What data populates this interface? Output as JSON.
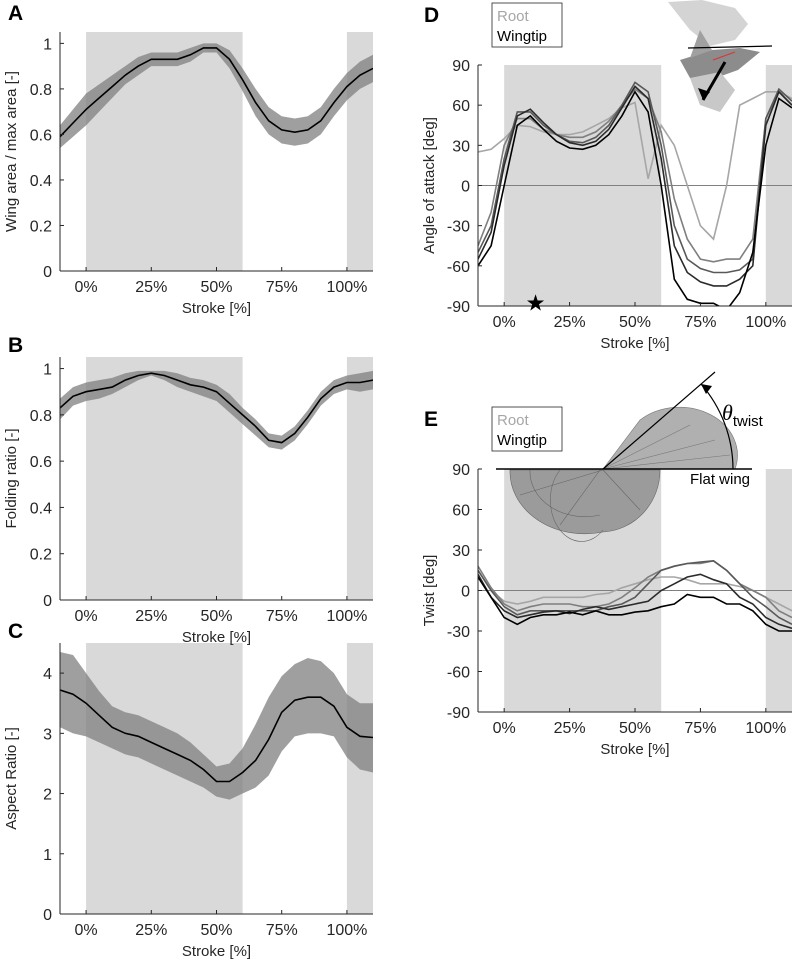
{
  "chart_data": [
    {
      "type": "line",
      "panel": "A",
      "xlabel": "Stroke [%]",
      "ylabel": "Wing area / max area [-]",
      "xlim": [
        -10,
        110
      ],
      "ylim": [
        0,
        1.05
      ],
      "xticks": [
        {
          "value": 0,
          "label": "0%"
        },
        {
          "value": 25,
          "label": "25%"
        },
        {
          "value": 50,
          "label": "50%"
        },
        {
          "value": 75,
          "label": "75%"
        },
        {
          "value": 100,
          "label": "100%"
        }
      ],
      "yticks": [
        0,
        0.2,
        0.4,
        0.6,
        0.8,
        1
      ],
      "shaded_regions": [
        [
          0,
          60
        ],
        [
          100,
          110
        ]
      ],
      "x": [
        -10,
        -5,
        0,
        5,
        10,
        15,
        20,
        25,
        30,
        35,
        40,
        45,
        50,
        55,
        60,
        65,
        70,
        75,
        80,
        85,
        90,
        95,
        100,
        105,
        110
      ],
      "series": [
        {
          "color": "#000000",
          "values": [
            0.59,
            0.65,
            0.71,
            0.76,
            0.81,
            0.86,
            0.9,
            0.93,
            0.93,
            0.93,
            0.95,
            0.98,
            0.98,
            0.93,
            0.84,
            0.74,
            0.66,
            0.62,
            0.61,
            0.62,
            0.66,
            0.74,
            0.81,
            0.86,
            0.89
          ]
        }
      ],
      "band": {
        "color": "#7f7f7f",
        "lower": [
          0.54,
          0.59,
          0.64,
          0.7,
          0.76,
          0.82,
          0.86,
          0.9,
          0.9,
          0.9,
          0.92,
          0.96,
          0.96,
          0.89,
          0.79,
          0.68,
          0.6,
          0.56,
          0.55,
          0.56,
          0.6,
          0.68,
          0.75,
          0.8,
          0.83
        ],
        "upper": [
          0.64,
          0.71,
          0.78,
          0.82,
          0.86,
          0.9,
          0.94,
          0.96,
          0.96,
          0.96,
          0.98,
          1.0,
          1.0,
          0.97,
          0.89,
          0.8,
          0.72,
          0.68,
          0.67,
          0.68,
          0.72,
          0.8,
          0.87,
          0.92,
          0.95
        ]
      }
    },
    {
      "type": "line",
      "panel": "B",
      "xlabel": "Stroke [%]",
      "ylabel": "Folding ratio [-]",
      "xlim": [
        -10,
        110
      ],
      "ylim": [
        0,
        1.05
      ],
      "xticks": [
        {
          "value": 0,
          "label": "0%"
        },
        {
          "value": 25,
          "label": "25%"
        },
        {
          "value": 50,
          "label": "50%"
        },
        {
          "value": 75,
          "label": "75%"
        },
        {
          "value": 100,
          "label": "100%"
        }
      ],
      "yticks": [
        0,
        0.2,
        0.4,
        0.6,
        0.8,
        1
      ],
      "shaded_regions": [
        [
          0,
          60
        ],
        [
          100,
          110
        ]
      ],
      "x": [
        -10,
        -5,
        0,
        5,
        10,
        15,
        20,
        25,
        30,
        35,
        40,
        45,
        50,
        55,
        60,
        65,
        70,
        75,
        80,
        85,
        90,
        95,
        100,
        105,
        110
      ],
      "series": [
        {
          "color": "#000000",
          "values": [
            0.83,
            0.88,
            0.9,
            0.91,
            0.92,
            0.95,
            0.97,
            0.98,
            0.97,
            0.95,
            0.93,
            0.92,
            0.9,
            0.85,
            0.8,
            0.75,
            0.69,
            0.68,
            0.72,
            0.79,
            0.87,
            0.92,
            0.94,
            0.94,
            0.95
          ]
        }
      ],
      "band": {
        "color": "#7f7f7f",
        "lower": [
          0.78,
          0.84,
          0.86,
          0.87,
          0.89,
          0.92,
          0.95,
          0.97,
          0.95,
          0.92,
          0.9,
          0.88,
          0.86,
          0.81,
          0.76,
          0.71,
          0.66,
          0.65,
          0.69,
          0.76,
          0.84,
          0.89,
          0.91,
          0.9,
          0.91
        ],
        "upper": [
          0.87,
          0.92,
          0.94,
          0.95,
          0.96,
          0.98,
          0.99,
          0.99,
          0.99,
          0.98,
          0.96,
          0.95,
          0.93,
          0.89,
          0.83,
          0.78,
          0.72,
          0.71,
          0.75,
          0.82,
          0.9,
          0.95,
          0.97,
          0.98,
          0.99
        ]
      }
    },
    {
      "type": "line",
      "panel": "C",
      "xlabel": "Stroke [%]",
      "ylabel": "Aspect Ratio [-]",
      "xlim": [
        -10,
        110
      ],
      "ylim": [
        0,
        4.5
      ],
      "xticks": [
        {
          "value": 0,
          "label": "0%"
        },
        {
          "value": 25,
          "label": "25%"
        },
        {
          "value": 50,
          "label": "50%"
        },
        {
          "value": 75,
          "label": "75%"
        },
        {
          "value": 100,
          "label": "100%"
        }
      ],
      "yticks": [
        0,
        1,
        2,
        3,
        4
      ],
      "shaded_regions": [
        [
          0,
          60
        ],
        [
          100,
          110
        ]
      ],
      "x": [
        -10,
        -5,
        0,
        5,
        10,
        15,
        20,
        25,
        30,
        35,
        40,
        45,
        50,
        55,
        60,
        65,
        70,
        75,
        80,
        85,
        90,
        95,
        100,
        105,
        110
      ],
      "series": [
        {
          "color": "#000000",
          "values": [
            3.72,
            3.65,
            3.5,
            3.3,
            3.1,
            3.0,
            2.95,
            2.85,
            2.75,
            2.65,
            2.55,
            2.4,
            2.2,
            2.2,
            2.35,
            2.55,
            2.9,
            3.35,
            3.55,
            3.6,
            3.6,
            3.45,
            3.1,
            2.95,
            2.93
          ]
        }
      ],
      "band": {
        "color": "#7f7f7f",
        "lower": [
          3.1,
          3.0,
          2.95,
          2.85,
          2.75,
          2.65,
          2.6,
          2.5,
          2.4,
          2.3,
          2.2,
          2.1,
          1.95,
          1.9,
          2.0,
          2.1,
          2.3,
          2.7,
          2.95,
          3.0,
          3.0,
          2.95,
          2.6,
          2.4,
          2.35
        ],
        "upper": [
          4.35,
          4.3,
          4.0,
          3.7,
          3.45,
          3.35,
          3.3,
          3.2,
          3.1,
          3.0,
          2.85,
          2.65,
          2.45,
          2.5,
          2.75,
          3.15,
          3.6,
          3.95,
          4.15,
          4.25,
          4.2,
          4.0,
          3.65,
          3.5,
          3.5
        ]
      }
    },
    {
      "type": "line",
      "panel": "D",
      "xlabel": "Stroke [%]",
      "ylabel": "Angle of attack [deg]",
      "xlim": [
        -10,
        110
      ],
      "ylim": [
        -90,
        90
      ],
      "xticks": [
        {
          "value": 0,
          "label": "0%"
        },
        {
          "value": 25,
          "label": "25%"
        },
        {
          "value": 50,
          "label": "50%"
        },
        {
          "value": 75,
          "label": "75%"
        },
        {
          "value": 100,
          "label": "100%"
        }
      ],
      "yticks": [
        -90,
        -60,
        -30,
        0,
        30,
        60,
        90
      ],
      "shaded_regions": [
        [
          0,
          60
        ],
        [
          100,
          110
        ]
      ],
      "hline": 0,
      "legend": [
        {
          "name": "Root",
          "color": "#a6a6a6"
        },
        {
          "name": "Wingtip",
          "color": "#000000"
        }
      ],
      "star": {
        "x": 12,
        "y": -88
      },
      "x": [
        -10,
        -5,
        0,
        5,
        10,
        15,
        20,
        25,
        30,
        35,
        40,
        45,
        50,
        55,
        60,
        65,
        70,
        75,
        80,
        85,
        90,
        95,
        100,
        105,
        110
      ],
      "series": [
        {
          "color": "#a6a6a6",
          "values": [
            25,
            27,
            35,
            45,
            44,
            40,
            38,
            38,
            40,
            45,
            50,
            58,
            62,
            5,
            45,
            30,
            0,
            -30,
            -40,
            0,
            60,
            65,
            70,
            70,
            65
          ]
        },
        {
          "color": "#7f7f7f",
          "values": [
            -45,
            -20,
            30,
            50,
            50,
            42,
            38,
            36,
            36,
            40,
            48,
            60,
            72,
            65,
            40,
            -10,
            -40,
            -55,
            -57,
            -55,
            -55,
            -40,
            50,
            70,
            60
          ]
        },
        {
          "color": "#595959",
          "values": [
            -50,
            -30,
            20,
            55,
            55,
            45,
            38,
            33,
            32,
            36,
            45,
            60,
            77,
            70,
            30,
            -30,
            -55,
            -62,
            -65,
            -65,
            -63,
            -55,
            50,
            72,
            63
          ]
        },
        {
          "color": "#2b2b2b",
          "values": [
            -55,
            -35,
            15,
            52,
            57,
            47,
            38,
            32,
            30,
            33,
            42,
            58,
            74,
            65,
            20,
            -45,
            -65,
            -72,
            -75,
            -75,
            -70,
            -60,
            45,
            70,
            60
          ]
        },
        {
          "color": "#000000",
          "values": [
            -60,
            -45,
            0,
            45,
            52,
            42,
            33,
            28,
            27,
            30,
            38,
            52,
            70,
            55,
            0,
            -70,
            -85,
            -88,
            -88,
            -93,
            -80,
            -50,
            30,
            65,
            58
          ]
        }
      ]
    },
    {
      "type": "line",
      "panel": "E",
      "xlabel": "Stroke [%]",
      "ylabel": "Twist [deg]",
      "xlim": [
        -10,
        110
      ],
      "ylim": [
        -90,
        90
      ],
      "xticks": [
        {
          "value": 0,
          "label": "0%"
        },
        {
          "value": 25,
          "label": "25%"
        },
        {
          "value": 50,
          "label": "50%"
        },
        {
          "value": 75,
          "label": "75%"
        },
        {
          "value": 100,
          "label": "100%"
        }
      ],
      "yticks": [
        -90,
        -60,
        -30,
        0,
        30,
        60,
        90
      ],
      "shaded_regions": [
        [
          0,
          60
        ],
        [
          100,
          110
        ]
      ],
      "hline": 0,
      "legend": [
        {
          "name": "Root",
          "color": "#a6a6a6"
        },
        {
          "name": "Wingtip",
          "color": "#000000"
        }
      ],
      "annotations": {
        "theta": "θ",
        "theta_sub": "twist",
        "flat_wing": "Flat wing"
      },
      "x": [
        -10,
        -5,
        0,
        5,
        10,
        15,
        20,
        25,
        30,
        35,
        40,
        45,
        50,
        55,
        60,
        65,
        70,
        75,
        80,
        85,
        90,
        95,
        100,
        105,
        110
      ],
      "series": [
        {
          "color": "#a6a6a6",
          "values": [
            15,
            0,
            -8,
            -10,
            -8,
            -5,
            -5,
            -5,
            -5,
            -3,
            -2,
            2,
            5,
            8,
            10,
            10,
            8,
            5,
            5,
            5,
            3,
            0,
            -5,
            -10,
            -15
          ]
        },
        {
          "color": "#7f7f7f",
          "values": [
            18,
            2,
            -10,
            -15,
            -12,
            -10,
            -10,
            -10,
            -12,
            -12,
            -10,
            -5,
            2,
            10,
            15,
            18,
            20,
            20,
            22,
            15,
            5,
            0,
            -5,
            -15,
            -20
          ]
        },
        {
          "color": "#595959",
          "values": [
            15,
            0,
            -12,
            -18,
            -15,
            -15,
            -15,
            -15,
            -15,
            -15,
            -12,
            -10,
            -5,
            5,
            15,
            18,
            20,
            21,
            22,
            15,
            5,
            -5,
            -12,
            -20,
            -25
          ]
        },
        {
          "color": "#2b2b2b",
          "values": [
            12,
            -5,
            -15,
            -20,
            -18,
            -16,
            -15,
            -17,
            -14,
            -12,
            -14,
            -12,
            -10,
            -8,
            0,
            5,
            10,
            12,
            8,
            5,
            -5,
            -10,
            -20,
            -25,
            -28
          ]
        },
        {
          "color": "#000000",
          "values": [
            10,
            -5,
            -20,
            -25,
            -20,
            -18,
            -18,
            -16,
            -18,
            -15,
            -18,
            -18,
            -16,
            -15,
            -12,
            -10,
            -3,
            -5,
            -5,
            -10,
            -10,
            -15,
            -25,
            -30,
            -30
          ]
        }
      ]
    }
  ]
}
